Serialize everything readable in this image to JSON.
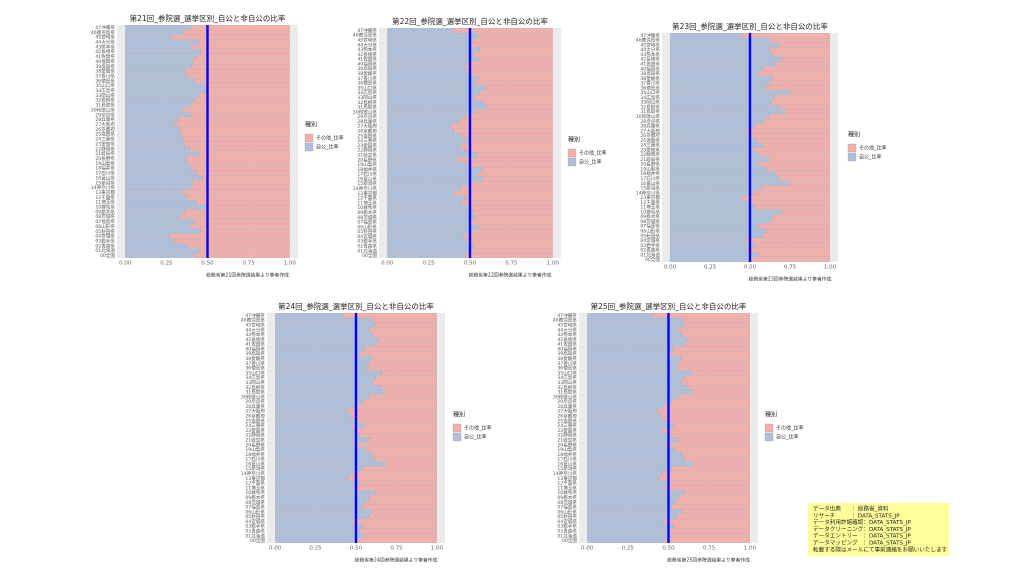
{
  "chart_data": [
    {
      "type": "stacked-barh",
      "title": "第21回_参院選_選挙区別_自公と非自公の比率",
      "caption": "総務省第21回参院選結果より筆者作成",
      "legend_title": "種別",
      "categories": [
        "00全国",
        "01北海道",
        "02青森県",
        "03岩手県",
        "04宮城県",
        "05秋田県",
        "06山形県",
        "07福島県",
        "08茨城県",
        "09栃木県",
        "10群馬県",
        "11埼玉県",
        "12千葉県",
        "13東京都",
        "14神奈川県",
        "15新潟県",
        "16富山県",
        "17石川県",
        "18福井県",
        "19山梨県",
        "20長野県",
        "21岐阜県",
        "22静岡県",
        "23愛知県",
        "24三重県",
        "25滋賀県",
        "26京都府",
        "27大阪府",
        "28兵庫県",
        "29奈良県",
        "30和歌山県",
        "31鳥取県",
        "32島根県",
        "33岡山県",
        "34広島県",
        "35山口県",
        "36徳島県",
        "37香川県",
        "38愛媛県",
        "39高知県",
        "40福岡県",
        "41佐賀県",
        "42長崎県",
        "43熊本県",
        "44大分県",
        "45宮崎県",
        "46鹿児島県",
        "47沖縄県"
      ],
      "series": [
        {
          "name": "その他_比率",
          "color": "#f2aeab",
          "values": [
            0.58,
            0.55,
            0.62,
            0.7,
            0.73,
            0.54,
            0.6,
            0.58,
            0.67,
            0.64,
            0.5,
            0.57,
            0.63,
            0.66,
            0.6,
            0.59,
            0.53,
            0.57,
            0.6,
            0.62,
            0.63,
            0.55,
            0.61,
            0.64,
            0.65,
            0.66,
            0.67,
            0.7,
            0.68,
            0.6,
            0.65,
            0.6,
            0.58,
            0.55,
            0.51,
            0.52,
            0.58,
            0.62,
            0.64,
            0.6,
            0.59,
            0.57,
            0.54,
            0.6,
            0.55,
            0.72,
            0.65,
            0.6
          ]
        },
        {
          "name": "自公_比率",
          "color": "#aebfda",
          "values": [
            0.42,
            0.45,
            0.38,
            0.3,
            0.27,
            0.46,
            0.4,
            0.42,
            0.33,
            0.36,
            0.5,
            0.43,
            0.37,
            0.34,
            0.4,
            0.41,
            0.47,
            0.43,
            0.4,
            0.38,
            0.37,
            0.45,
            0.39,
            0.36,
            0.35,
            0.34,
            0.33,
            0.3,
            0.32,
            0.4,
            0.35,
            0.4,
            0.42,
            0.45,
            0.49,
            0.48,
            0.42,
            0.38,
            0.36,
            0.4,
            0.41,
            0.43,
            0.46,
            0.4,
            0.45,
            0.28,
            0.35,
            0.4
          ]
        }
      ],
      "xlim": [
        -0.05,
        1.05
      ],
      "xticks": [
        {
          "value": 0,
          "label": "0.00"
        },
        {
          "value": 0.25,
          "label": "0.25"
        },
        {
          "value": 0.5,
          "label": "0.50"
        },
        {
          "value": 0.75,
          "label": "0.75"
        },
        {
          "value": 1,
          "label": "1.00"
        }
      ],
      "refline": 0.5,
      "refline_color": "#0000ff",
      "grid": true
    },
    {
      "type": "stacked-barh",
      "title": "第22回_参院選_選挙区別_自公と非自公の比率",
      "caption": "総務省第22回参院選結果より筆者作成",
      "legend_title": "種別",
      "categories": [
        "00全国",
        "01北海道",
        "02青森県",
        "03岩手県",
        "04宮城県",
        "05秋田県",
        "06山形県",
        "07福島県",
        "08茨城県",
        "09栃木県",
        "10群馬県",
        "11埼玉県",
        "12千葉県",
        "13東京都",
        "14神奈川県",
        "15新潟県",
        "16富山県",
        "17石川県",
        "18福井県",
        "19山梨県",
        "20長野県",
        "21岐阜県",
        "22静岡県",
        "23愛知県",
        "24三重県",
        "25滋賀県",
        "26京都府",
        "27大阪府",
        "28兵庫県",
        "29奈良県",
        "30和歌山県",
        "31鳥取県",
        "32島根県",
        "33岡山県",
        "34広島県",
        "35山口県",
        "36徳島県",
        "37香川県",
        "38愛媛県",
        "39高知県",
        "40福岡県",
        "41佐賀県",
        "42長崎県",
        "43熊本県",
        "44大分県",
        "45宮崎県",
        "46鹿児島県",
        "47沖縄県"
      ],
      "series": [
        {
          "name": "その他_比率",
          "color": "#f2aeab",
          "values": [
            0.53,
            0.5,
            0.48,
            0.52,
            0.54,
            0.49,
            0.45,
            0.51,
            0.47,
            0.48,
            0.5,
            0.55,
            0.53,
            0.6,
            0.56,
            0.5,
            0.42,
            0.45,
            0.43,
            0.52,
            0.58,
            0.46,
            0.53,
            0.56,
            0.51,
            0.55,
            0.6,
            0.62,
            0.57,
            0.53,
            0.48,
            0.4,
            0.42,
            0.48,
            0.44,
            0.4,
            0.47,
            0.45,
            0.5,
            0.53,
            0.52,
            0.45,
            0.48,
            0.44,
            0.5,
            0.48,
            0.45,
            0.6
          ]
        },
        {
          "name": "自公_比率",
          "color": "#aebfda",
          "values": [
            0.47,
            0.5,
            0.52,
            0.48,
            0.46,
            0.51,
            0.55,
            0.49,
            0.53,
            0.52,
            0.5,
            0.45,
            0.47,
            0.4,
            0.44,
            0.5,
            0.58,
            0.55,
            0.57,
            0.48,
            0.42,
            0.54,
            0.47,
            0.44,
            0.49,
            0.45,
            0.4,
            0.38,
            0.43,
            0.47,
            0.52,
            0.6,
            0.58,
            0.52,
            0.56,
            0.6,
            0.53,
            0.55,
            0.5,
            0.47,
            0.48,
            0.55,
            0.52,
            0.56,
            0.5,
            0.52,
            0.55,
            0.4
          ]
        }
      ],
      "xlim": [
        -0.05,
        1.05
      ],
      "xticks": [
        {
          "value": 0,
          "label": "0.00"
        },
        {
          "value": 0.25,
          "label": "0.25"
        },
        {
          "value": 0.5,
          "label": "0.50"
        },
        {
          "value": 0.75,
          "label": "0.75"
        },
        {
          "value": 1,
          "label": "1.00"
        }
      ],
      "refline": 0.5,
      "refline_color": "#0000ff",
      "grid": true
    },
    {
      "type": "stacked-barh",
      "title": "第23回_参院選_選挙区別_自公と非自公の比率",
      "caption": "総務省第23回参院選結果より筆者作成",
      "legend_title": "種別",
      "categories": [
        "00全国",
        "01北海道",
        "02青森県",
        "03岩手県",
        "04宮城県",
        "05秋田県",
        "06山形県",
        "07福島県",
        "08茨城県",
        "09栃木県",
        "10群馬県",
        "11埼玉県",
        "12千葉県",
        "13東京都",
        "14神奈川県",
        "15新潟県",
        "16富山県",
        "17石川県",
        "18福井県",
        "19山梨県",
        "20長野県",
        "21岐阜県",
        "22静岡県",
        "23愛知県",
        "24三重県",
        "25滋賀県",
        "26京都府",
        "27大阪府",
        "28兵庫県",
        "29奈良県",
        "30和歌山県",
        "31鳥取県",
        "32島根県",
        "33岡山県",
        "34広島県",
        "35山口県",
        "36徳島県",
        "37香川県",
        "38愛媛県",
        "39高知県",
        "40福岡県",
        "41佐賀県",
        "42長崎県",
        "43熊本県",
        "44大分県",
        "45宮崎県",
        "46鹿児島県",
        "47沖縄県"
      ],
      "series": [
        {
          "name": "その他_比率",
          "color": "#f2aeab",
          "values": [
            0.5,
            0.45,
            0.52,
            0.47,
            0.53,
            0.42,
            0.4,
            0.45,
            0.38,
            0.35,
            0.3,
            0.47,
            0.5,
            0.55,
            0.48,
            0.43,
            0.25,
            0.32,
            0.34,
            0.4,
            0.45,
            0.38,
            0.44,
            0.48,
            0.42,
            0.46,
            0.5,
            0.52,
            0.47,
            0.42,
            0.38,
            0.28,
            0.32,
            0.37,
            0.35,
            0.25,
            0.4,
            0.38,
            0.36,
            0.45,
            0.42,
            0.34,
            0.3,
            0.36,
            0.38,
            0.32,
            0.38,
            0.55
          ]
        },
        {
          "name": "自公_比率",
          "color": "#aebfda",
          "values": [
            0.5,
            0.55,
            0.48,
            0.53,
            0.47,
            0.58,
            0.6,
            0.55,
            0.62,
            0.65,
            0.7,
            0.53,
            0.5,
            0.45,
            0.52,
            0.57,
            0.75,
            0.68,
            0.66,
            0.6,
            0.55,
            0.62,
            0.56,
            0.52,
            0.58,
            0.54,
            0.5,
            0.48,
            0.53,
            0.58,
            0.62,
            0.72,
            0.68,
            0.63,
            0.65,
            0.75,
            0.6,
            0.62,
            0.64,
            0.55,
            0.58,
            0.66,
            0.7,
            0.64,
            0.62,
            0.68,
            0.62,
            0.45
          ]
        }
      ],
      "xlim": [
        -0.05,
        1.05
      ],
      "xticks": [
        {
          "value": 0,
          "label": "0.00"
        },
        {
          "value": 0.25,
          "label": "0.25"
        },
        {
          "value": 0.5,
          "label": "0.50"
        },
        {
          "value": 0.75,
          "label": "0.75"
        },
        {
          "value": 1,
          "label": "1.00"
        }
      ],
      "refline": 0.5,
      "refline_color": "#0000ff",
      "grid": true
    },
    {
      "type": "stacked-barh",
      "title": "第24回_参院選_選挙区別_自公と非自公の比率",
      "caption": "総務省第24回参院選結果より筆者作成",
      "legend_title": "種別",
      "categories": [
        "00全国",
        "01北海道",
        "02青森県",
        "03岩手県",
        "04宮城県",
        "05秋田県",
        "06山形県",
        "07福島県",
        "08茨城県",
        "09栃木県",
        "10群馬県",
        "11埼玉県",
        "12千葉県",
        "13東京都",
        "14神奈川県",
        "15新潟県",
        "16富山県",
        "17石川県",
        "18福井県",
        "19山梨県",
        "20長野県",
        "21岐阜県",
        "22静岡県",
        "23愛知県",
        "24三重県",
        "25滋賀県",
        "26京都府",
        "27大阪府",
        "28兵庫県",
        "29奈良県",
        "30和歌山県",
        "31鳥取県",
        "32島根県",
        "33岡山県",
        "34広島県",
        "35山口県",
        "36徳島県",
        "37香川県",
        "38愛媛県",
        "39高知県",
        "40福岡県",
        "41佐賀県",
        "42長崎県",
        "43熊本県",
        "44大分県",
        "45宮崎県",
        "46鹿児島県",
        "47沖縄県"
      ],
      "series": [
        {
          "name": "その他_比率",
          "color": "#f2aeab",
          "values": [
            0.5,
            0.45,
            0.48,
            0.46,
            0.52,
            0.42,
            0.4,
            0.46,
            0.44,
            0.42,
            0.38,
            0.5,
            0.48,
            0.55,
            0.52,
            0.46,
            0.32,
            0.38,
            0.4,
            0.44,
            0.5,
            0.42,
            0.48,
            0.52,
            0.45,
            0.5,
            0.53,
            0.55,
            0.51,
            0.46,
            0.42,
            0.32,
            0.35,
            0.4,
            0.38,
            0.34,
            0.43,
            0.42,
            0.4,
            0.48,
            0.45,
            0.38,
            0.36,
            0.4,
            0.42,
            0.38,
            0.4,
            0.58
          ]
        },
        {
          "name": "自公_比率",
          "color": "#aebfda",
          "values": [
            0.5,
            0.55,
            0.52,
            0.54,
            0.48,
            0.58,
            0.6,
            0.54,
            0.56,
            0.58,
            0.62,
            0.5,
            0.52,
            0.45,
            0.48,
            0.54,
            0.68,
            0.62,
            0.6,
            0.56,
            0.5,
            0.58,
            0.52,
            0.48,
            0.55,
            0.5,
            0.47,
            0.45,
            0.49,
            0.54,
            0.58,
            0.68,
            0.65,
            0.6,
            0.62,
            0.66,
            0.57,
            0.58,
            0.6,
            0.52,
            0.55,
            0.62,
            0.64,
            0.6,
            0.58,
            0.62,
            0.6,
            0.42
          ]
        }
      ],
      "xlim": [
        -0.05,
        1.05
      ],
      "xticks": [
        {
          "value": 0,
          "label": "0.00"
        },
        {
          "value": 0.25,
          "label": "0.25"
        },
        {
          "value": 0.5,
          "label": "0.50"
        },
        {
          "value": 0.75,
          "label": "0.75"
        },
        {
          "value": 1,
          "label": "1.00"
        }
      ],
      "refline": 0.5,
      "refline_color": "#0000ff",
      "grid": true
    },
    {
      "type": "stacked-barh",
      "title": "第25回_参院選_選挙区別_自公と非自公の比率",
      "caption": "総務省第25回参院選結果より筆者作成",
      "legend_title": "種別",
      "categories": [
        "00全国",
        "01北海道",
        "02青森県",
        "03岩手県",
        "04宮城県",
        "05秋田県",
        "06山形県",
        "07福島県",
        "08茨城県",
        "09栃木県",
        "10群馬県",
        "11埼玉県",
        "12千葉県",
        "13東京都",
        "14神奈川県",
        "15新潟県",
        "16富山県",
        "17石川県",
        "18福井県",
        "19山梨県",
        "20長野県",
        "21岐阜県",
        "22静岡県",
        "23愛知県",
        "24三重県",
        "25滋賀県",
        "26京都府",
        "27大阪府",
        "28兵庫県",
        "29奈良県",
        "30和歌山県",
        "31鳥取県",
        "32島根県",
        "33岡山県",
        "34広島県",
        "35山口県",
        "36徳島県",
        "37香川県",
        "38愛媛県",
        "39高知県",
        "40福岡県",
        "41佐賀県",
        "42長崎県",
        "43熊本県",
        "44大分県",
        "45宮崎県",
        "46鹿児島県",
        "47沖縄県"
      ],
      "series": [
        {
          "name": "その他_比率",
          "color": "#f2aeab",
          "values": [
            0.52,
            0.48,
            0.5,
            0.47,
            0.53,
            0.45,
            0.42,
            0.48,
            0.46,
            0.44,
            0.4,
            0.52,
            0.5,
            0.56,
            0.54,
            0.48,
            0.35,
            0.4,
            0.42,
            0.46,
            0.52,
            0.44,
            0.5,
            0.54,
            0.47,
            0.52,
            0.55,
            0.57,
            0.53,
            0.48,
            0.44,
            0.35,
            0.38,
            0.42,
            0.4,
            0.36,
            0.45,
            0.44,
            0.42,
            0.5,
            0.47,
            0.4,
            0.38,
            0.42,
            0.44,
            0.4,
            0.42,
            0.6
          ]
        },
        {
          "name": "自公_比率",
          "color": "#aebfda",
          "values": [
            0.48,
            0.52,
            0.5,
            0.53,
            0.47,
            0.55,
            0.58,
            0.52,
            0.54,
            0.56,
            0.6,
            0.48,
            0.5,
            0.44,
            0.46,
            0.52,
            0.65,
            0.6,
            0.58,
            0.54,
            0.48,
            0.56,
            0.5,
            0.46,
            0.53,
            0.48,
            0.45,
            0.43,
            0.47,
            0.52,
            0.56,
            0.65,
            0.62,
            0.58,
            0.6,
            0.64,
            0.55,
            0.56,
            0.58,
            0.5,
            0.53,
            0.6,
            0.62,
            0.58,
            0.56,
            0.6,
            0.58,
            0.4
          ]
        }
      ],
      "xlim": [
        -0.05,
        1.05
      ],
      "xticks": [
        {
          "value": 0,
          "label": "0.00"
        },
        {
          "value": 0.25,
          "label": "0.25"
        },
        {
          "value": 0.5,
          "label": "0.50"
        },
        {
          "value": 0.75,
          "label": "0.75"
        },
        {
          "value": 1,
          "label": "1.00"
        }
      ],
      "refline": 0.5,
      "refline_color": "#0000ff",
      "grid": true
    }
  ],
  "note": {
    "lines": [
      "データ出典　　：総務省_資料",
      "リサーチ　　　：DATA_STATS_JP",
      "データ利用許諾確認：DATA_STATS_JP",
      "データクリーニング：DATA_STATS_JP",
      "データエントリー　：DATA_STATS_JP",
      "データマッピング　：DATA_STATS_JP",
      "転載する際はメールにて事前連絡をお願いいたします"
    ]
  }
}
